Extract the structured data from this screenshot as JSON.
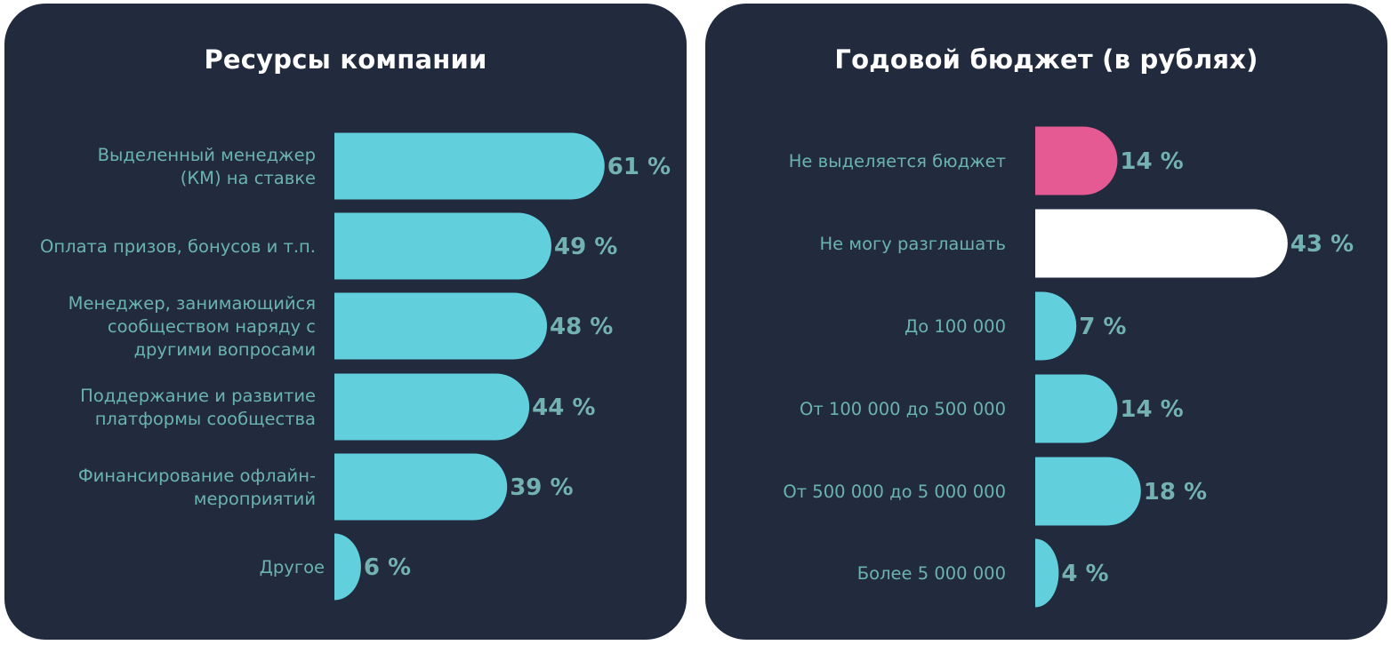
{
  "colors": {
    "panel_bg": "#222a3e",
    "bar_default": "#62d0dc",
    "bar_pink": "#e65a93",
    "bar_white": "#ffffff",
    "label": "#6bb3b3",
    "value": "#73b2b0"
  },
  "chart_data": [
    {
      "type": "bar",
      "orientation": "horizontal",
      "title": "Ресурсы компании",
      "xlim": [
        0,
        100
      ],
      "grid": false,
      "legend": "none",
      "categories": [
        [
          "Выделенный менеджер",
          "(КМ) на ставке"
        ],
        [
          "Оплата призов, бонусов и т.п."
        ],
        [
          "Менеджер, занимающийся",
          "сообществом наряду с",
          "другими вопросами"
        ],
        [
          "Поддержание и развитие",
          "платформы сообщества"
        ],
        [
          "Финансирование офлайн-",
          "мероприятий"
        ],
        [
          "Другое"
        ]
      ],
      "values": [
        61,
        49,
        48,
        44,
        39,
        6
      ],
      "value_labels": [
        "61 %",
        "49 %",
        "48 %",
        "44 %",
        "39 %",
        "6 %"
      ],
      "colors": [
        "#62d0dc",
        "#62d0dc",
        "#62d0dc",
        "#62d0dc",
        "#62d0dc",
        "#62d0dc"
      ]
    },
    {
      "type": "bar",
      "orientation": "horizontal",
      "title": "Годовой бюджет (в рублях)",
      "xlim": [
        0,
        100
      ],
      "grid": false,
      "legend": "none",
      "categories": [
        [
          "Не выделяется бюджет"
        ],
        [
          "Не могу разглашать"
        ],
        [
          "До 100 000"
        ],
        [
          "От 100 000 до 500 000"
        ],
        [
          "От 500 000 до 5 000 000"
        ],
        [
          "Более 5 000 000"
        ]
      ],
      "values": [
        14,
        43,
        7,
        14,
        18,
        4
      ],
      "value_labels": [
        "14 %",
        "43 %",
        "7 %",
        "14 %",
        "18 %",
        "4 %"
      ],
      "colors": [
        "#e65a93",
        "#ffffff",
        "#62d0dc",
        "#62d0dc",
        "#62d0dc",
        "#62d0dc"
      ]
    }
  ]
}
